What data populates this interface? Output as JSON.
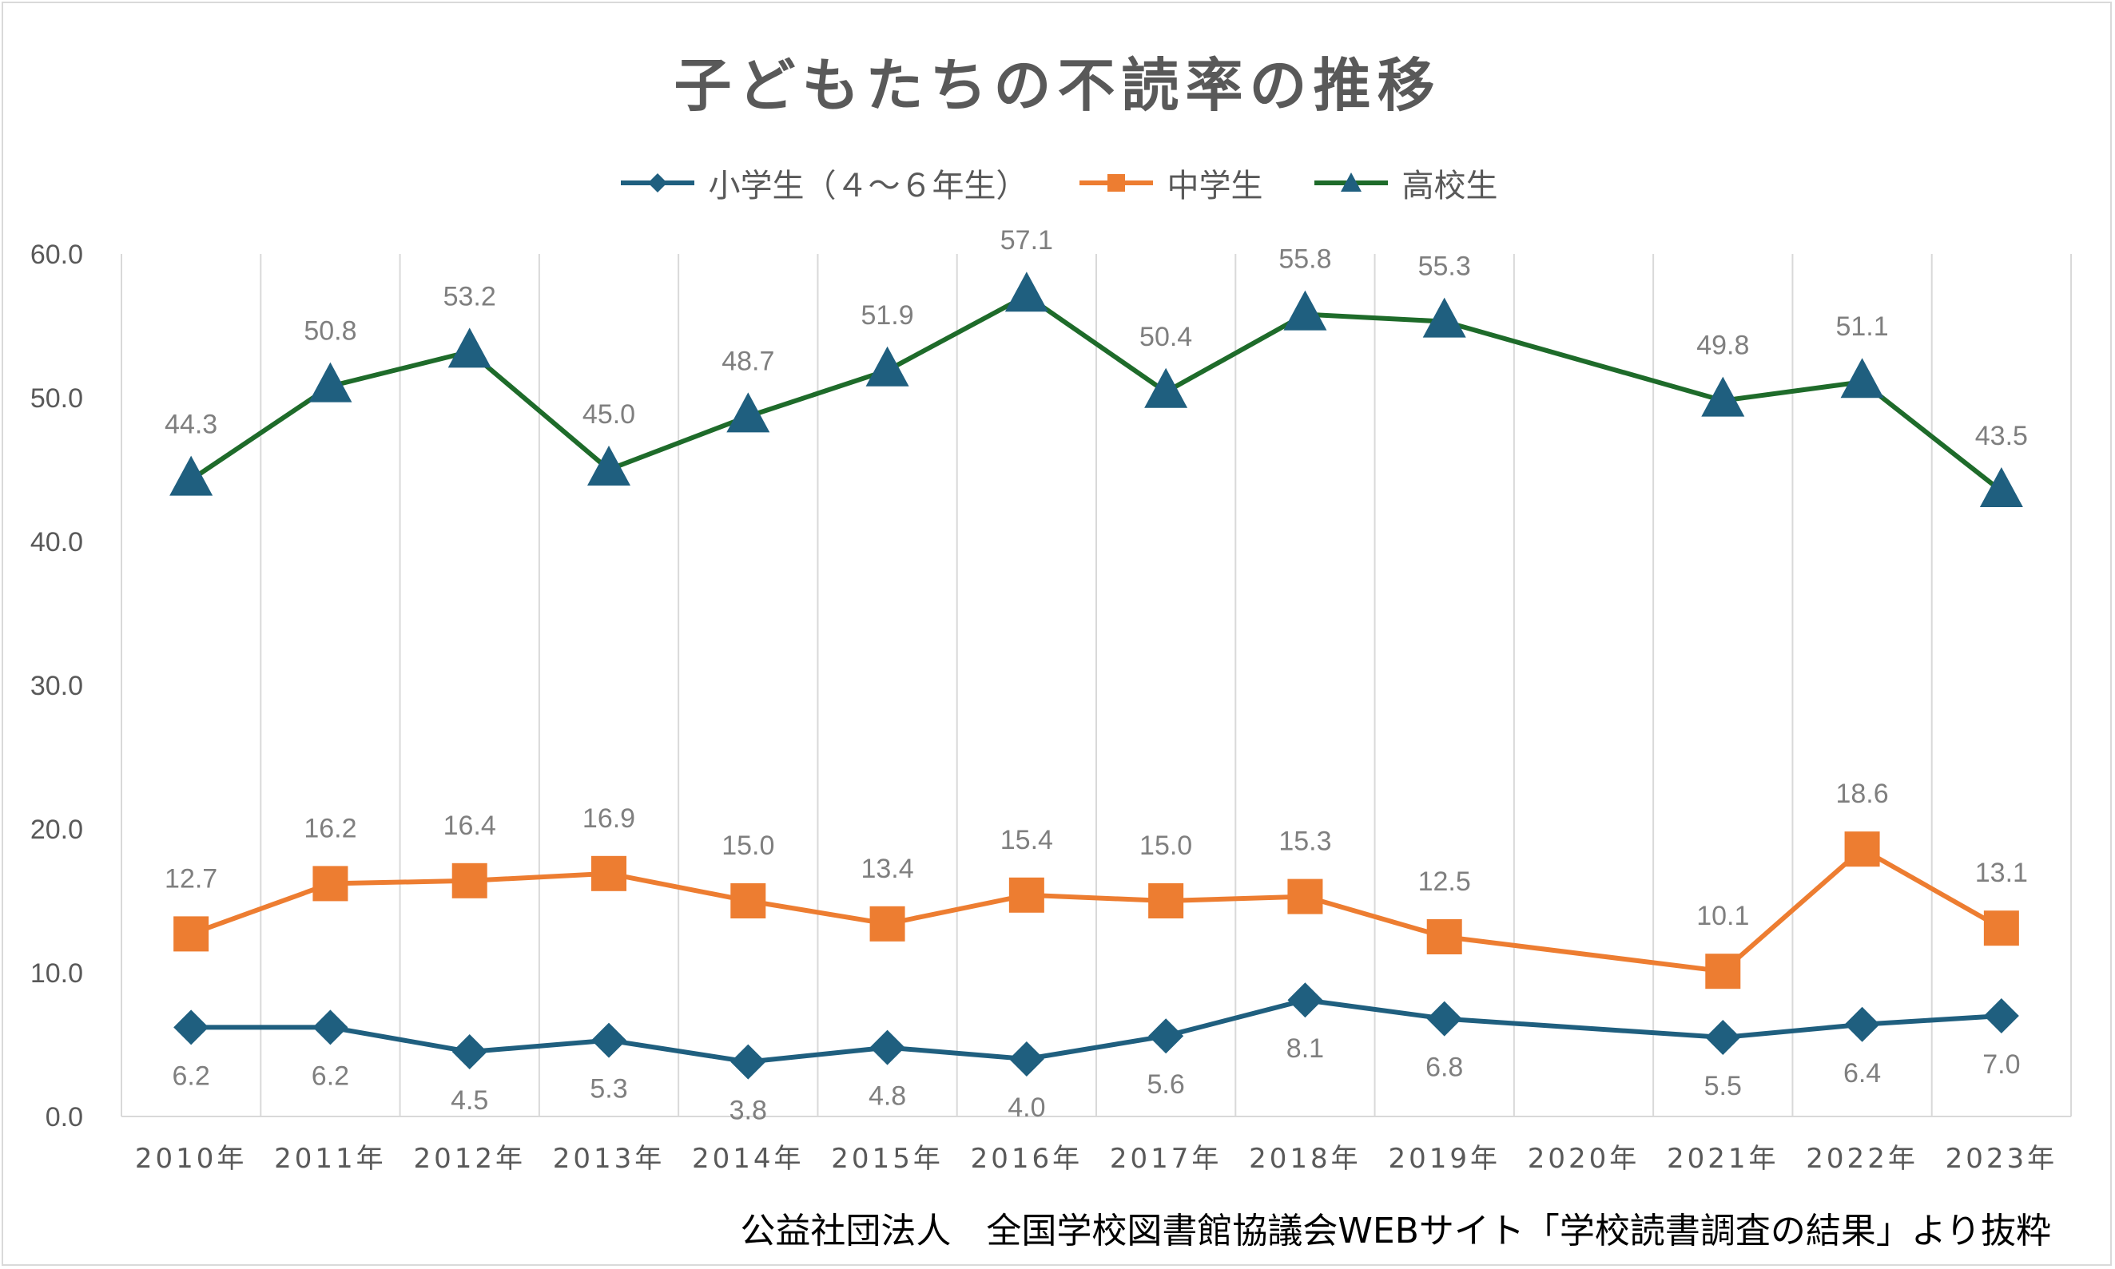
{
  "chart_data": {
    "type": "line",
    "title": "子どもたちの不読率の推移",
    "categories": [
      "2010年",
      "2011年",
      "2012年",
      "2013年",
      "2014年",
      "2015年",
      "2016年",
      "2017年",
      "2018年",
      "2019年",
      "2020年",
      "2021年",
      "2022年",
      "2023年"
    ],
    "ylim": [
      0,
      60
    ],
    "yticks": [
      "0.0",
      "10.0",
      "20.0",
      "30.0",
      "40.0",
      "50.0",
      "60.0"
    ],
    "grid": "vertical",
    "legend_position": "top",
    "series": [
      {
        "name": "小学生（４～６年生）",
        "color": "#1f5f7f",
        "marker": "diamond",
        "values": [
          6.2,
          6.2,
          4.5,
          5.3,
          3.8,
          4.8,
          4.0,
          5.6,
          8.1,
          6.8,
          null,
          5.5,
          6.4,
          7.0
        ],
        "labels": [
          "6.2",
          "6.2",
          "4.5",
          "5.3",
          "3.8",
          "4.8",
          "4.0",
          "5.6",
          "8.1",
          "6.8",
          "",
          "5.5",
          "6.4",
          "7.0"
        ],
        "label_position": "below"
      },
      {
        "name": "中学生",
        "color": "#ed7d31",
        "marker": "square",
        "values": [
          12.7,
          16.2,
          16.4,
          16.9,
          15.0,
          13.4,
          15.4,
          15.0,
          15.3,
          12.5,
          null,
          10.1,
          18.6,
          13.1
        ],
        "labels": [
          "12.7",
          "16.2",
          "16.4",
          "16.9",
          "15.0",
          "13.4",
          "15.4",
          "15.0",
          "15.3",
          "12.5",
          "",
          "10.1",
          "18.6",
          "13.1"
        ],
        "label_position": "above"
      },
      {
        "name": "高校生",
        "color": "#1e6b2a",
        "marker": "triangle",
        "marker_color": "#1f5f7f",
        "values": [
          44.3,
          50.8,
          53.2,
          45.0,
          48.7,
          51.9,
          57.1,
          50.4,
          55.8,
          55.3,
          null,
          49.8,
          51.1,
          43.5
        ],
        "labels": [
          "44.3",
          "50.8",
          "53.2",
          "45.0",
          "48.7",
          "51.9",
          "57.1",
          "50.4",
          "55.8",
          "55.3",
          "",
          "49.8",
          "51.1",
          "43.5"
        ],
        "label_position": "above"
      }
    ]
  },
  "source": "公益社団法人　全国学校図書館協議会WEBサイト「学校読書調査の結果」より抜粋"
}
